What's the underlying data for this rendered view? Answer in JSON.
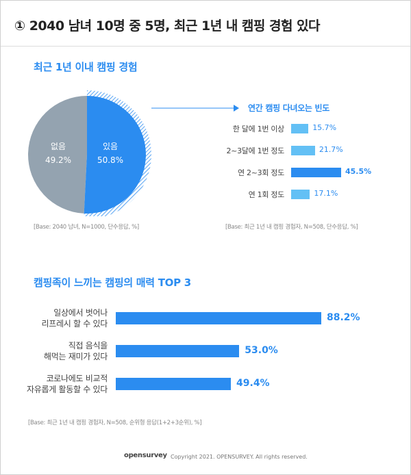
{
  "header": {
    "title": "① 2040 남녀 10명 중 5명, 최근 1년 내 캠핑 경험 있다"
  },
  "colors": {
    "accent": "#2b8cf0",
    "pie_no": "#94a3b0",
    "bar_light": "#63c0f5",
    "bar_dark": "#2b8cf0"
  },
  "section1": {
    "title": "최근 1년 이내 캠핑 경험",
    "base_left": "[Base: 2040 남녀, N=1000, 단수응답, %]",
    "base_right": "[Base: 최근 1년 내 캠핑 경험자, N=508, 단수응답, %]",
    "frequency_title": "연간 캠핑 다녀오는 빈도"
  },
  "section2": {
    "title": "캠핑족이 느끼는 캠핑의 매력 TOP 3",
    "base": "[Base: 최근 1년 내 캠핑 경험자, N=508, 순위형 응답(1+2+3순위), %]"
  },
  "footer": {
    "logo": "opensurvey",
    "copyright": "Copyright 2021. OPENSURVEY. All rights reserved."
  },
  "chart_data": [
    {
      "type": "pie",
      "categories": [
        "없음",
        "있음"
      ],
      "values": [
        49.2,
        50.8
      ],
      "labels": [
        "49.2%",
        "50.8%"
      ]
    },
    {
      "type": "bar",
      "title": "연간 캠핑 다녀오는 빈도",
      "categories": [
        "한 달에 1번 이상",
        "2~3달에 1번 정도",
        "연 2~3회 정도",
        "연 1회 정도"
      ],
      "values": [
        15.7,
        21.7,
        45.5,
        17.1
      ],
      "labels": [
        "15.7%",
        "21.7%",
        "45.5%",
        "17.1%"
      ],
      "highlight_index": 2
    },
    {
      "type": "bar",
      "title": "캠핑족이 느끼는 캠핑의 매력 TOP 3",
      "categories": [
        [
          "일상에서 벗어나",
          "리프레시 할 수 있다"
        ],
        [
          "직접 음식을",
          "해먹는 재미가 있다"
        ],
        [
          "코로나에도 비교적",
          "자유롭게 활동할 수 있다"
        ]
      ],
      "values": [
        88.2,
        53.0,
        49.4
      ],
      "labels": [
        "88.2%",
        "53.0%",
        "49.4%"
      ]
    }
  ]
}
